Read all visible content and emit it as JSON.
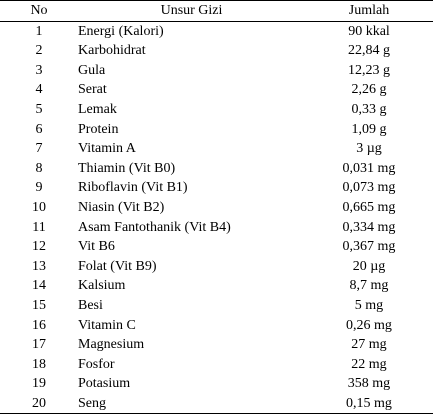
{
  "table": {
    "headers": {
      "no": "No",
      "name": "Unsur Gizi",
      "amount": "Jumlah"
    },
    "rows": [
      {
        "no": "1",
        "name": "Energi (Kalori)",
        "amount": "90 kkal"
      },
      {
        "no": "2",
        "name": "Karbohidrat",
        "amount": "22,84 g"
      },
      {
        "no": "3",
        "name": "Gula",
        "amount": "12,23 g"
      },
      {
        "no": "4",
        "name": "Serat",
        "amount": "2,26 g"
      },
      {
        "no": "5",
        "name": "Lemak",
        "amount": "0,33 g"
      },
      {
        "no": "6",
        "name": "Protein",
        "amount": "1,09 g"
      },
      {
        "no": "7",
        "name": "Vitamin A",
        "amount": "3 µg"
      },
      {
        "no": "8",
        "name": "Thiamin (Vit B0)",
        "amount": "0,031 mg"
      },
      {
        "no": "9",
        "name": "Riboflavin (Vit B1)",
        "amount": "0,073 mg"
      },
      {
        "no": "10",
        "name": "Niasin (Vit B2)",
        "amount": "0,665 mg"
      },
      {
        "no": "11",
        "name": "Asam Fantothanik (Vit B4)",
        "amount": "0,334 mg"
      },
      {
        "no": "12",
        "name": "Vit B6",
        "amount": "0,367 mg"
      },
      {
        "no": "13",
        "name": "Folat (Vit B9)",
        "amount": "20 µg"
      },
      {
        "no": "14",
        "name": "Kalsium",
        "amount": "8,7 mg"
      },
      {
        "no": "15",
        "name": "Besi",
        "amount": "5 mg"
      },
      {
        "no": "16",
        "name": "Vitamin C",
        "amount": "0,26 mg"
      },
      {
        "no": "17",
        "name": "Magnesium",
        "amount": "27 mg"
      },
      {
        "no": "18",
        "name": "Fosfor",
        "amount": "22 mg"
      },
      {
        "no": "19",
        "name": "Potasium",
        "amount": "358 mg"
      },
      {
        "no": "20",
        "name": "Seng",
        "amount": "0,15 mg"
      }
    ]
  }
}
